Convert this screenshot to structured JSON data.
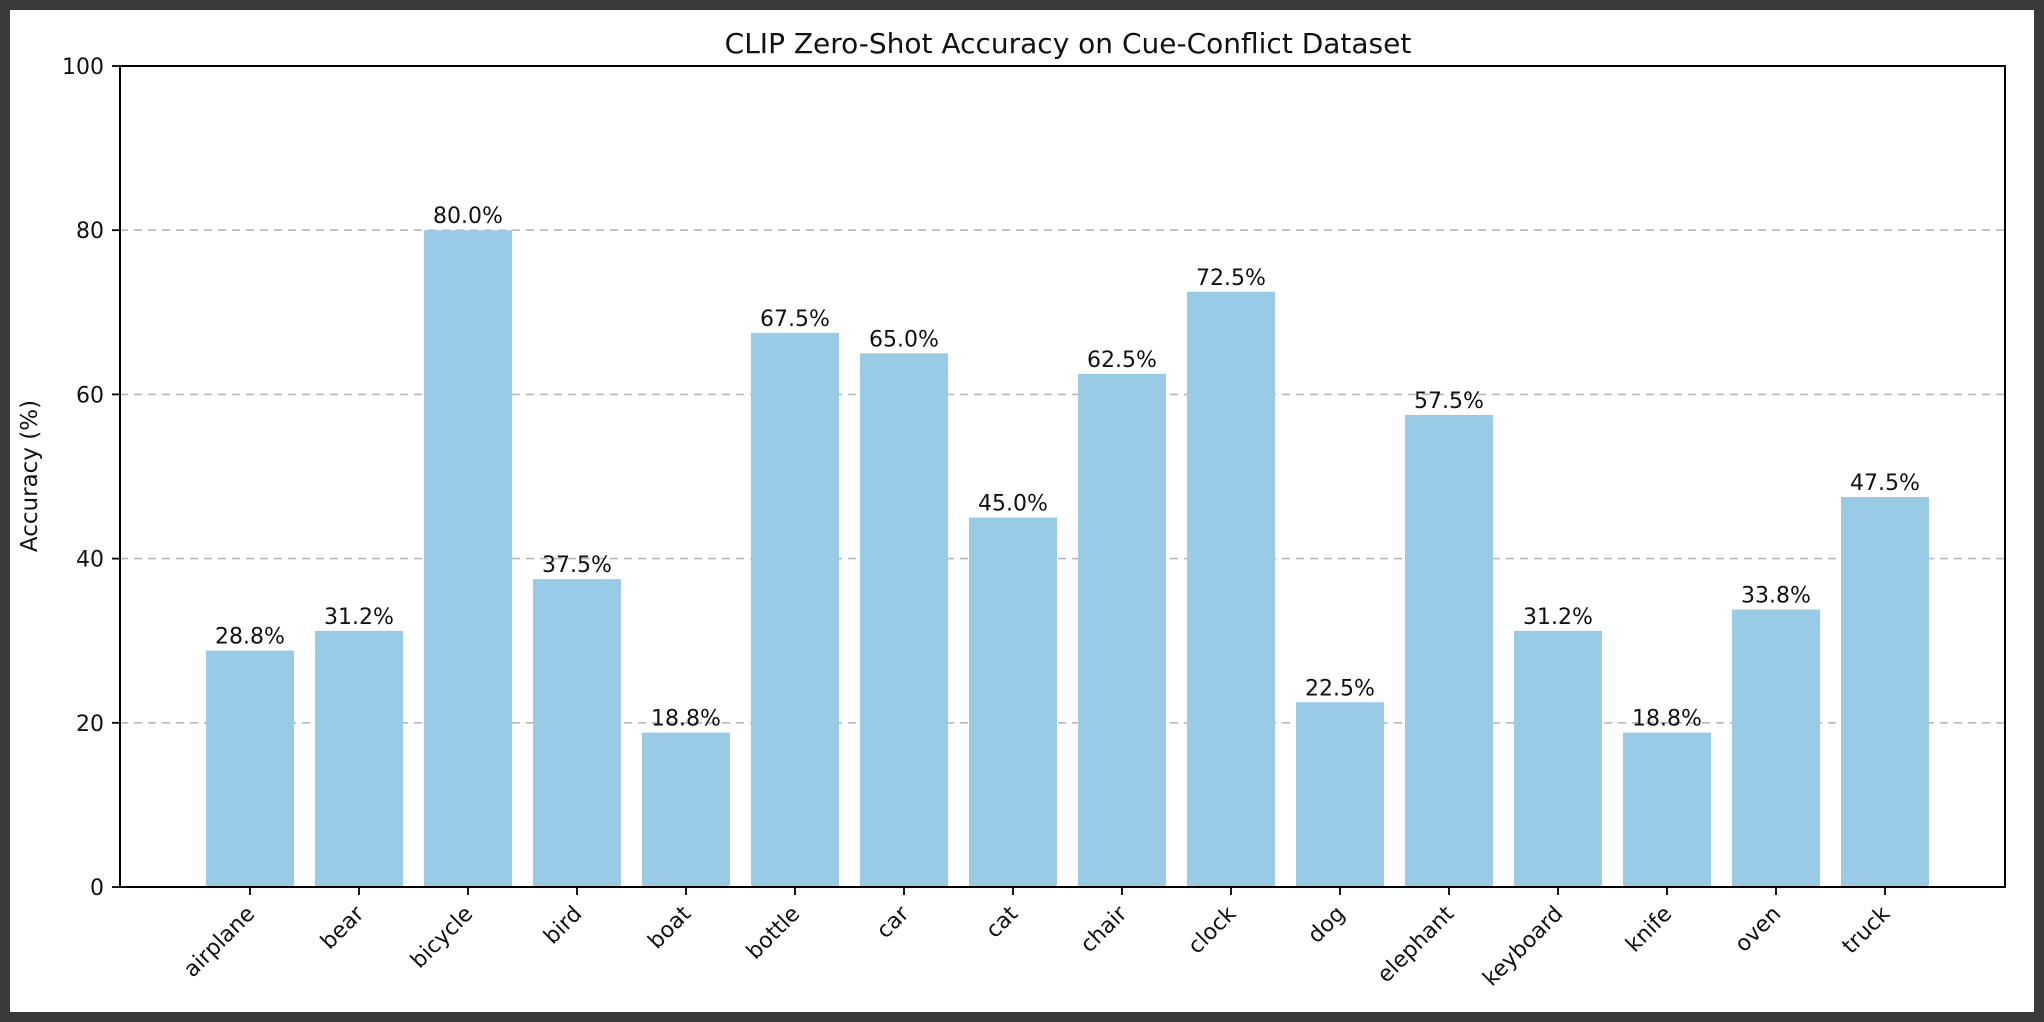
{
  "chart_data": {
    "type": "bar",
    "title": "CLIP Zero-Shot Accuracy on Cue-Conflict Dataset",
    "xlabel": "",
    "ylabel": "Accuracy (%)",
    "ylim": [
      0,
      100
    ],
    "yticks": [
      "0",
      "20",
      "40",
      "60",
      "80",
      "100"
    ],
    "grid": "y-dashed",
    "categories": [
      "airplane",
      "bear",
      "bicycle",
      "bird",
      "boat",
      "bottle",
      "car",
      "cat",
      "chair",
      "clock",
      "dog",
      "elephant",
      "keyboard",
      "knife",
      "oven",
      "truck"
    ],
    "values": [
      28.8,
      31.2,
      80.0,
      37.5,
      18.8,
      67.5,
      65.0,
      45.0,
      62.5,
      72.5,
      22.5,
      57.5,
      31.2,
      18.8,
      33.8,
      47.5
    ],
    "data_labels": [
      "28.8%",
      "31.2%",
      "80.0%",
      "37.5%",
      "18.8%",
      "67.5%",
      "65.0%",
      "45.0%",
      "62.5%",
      "72.5%",
      "22.5%",
      "57.5%",
      "31.2%",
      "18.8%",
      "33.8%",
      "47.5%"
    ],
    "bar_color": "#99cbe7"
  }
}
